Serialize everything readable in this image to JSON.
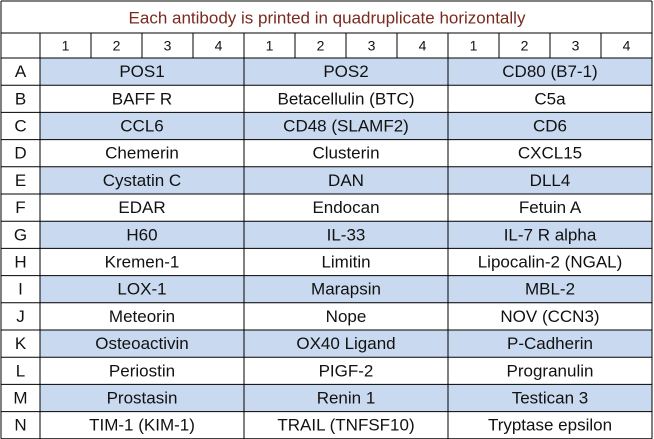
{
  "title": "Each antibody is printed in quadruplicate horizontally",
  "header": [
    "1",
    "2",
    "3",
    "4",
    "1",
    "2",
    "3",
    "4",
    "1",
    "2",
    "3",
    "4"
  ],
  "rows": [
    {
      "label": "A",
      "cells": [
        "POS1",
        "POS2",
        "CD80 (B7-1)"
      ]
    },
    {
      "label": "B",
      "cells": [
        "BAFF R",
        "Betacellulin (BTC)",
        "C5a"
      ]
    },
    {
      "label": "C",
      "cells": [
        "CCL6",
        "CD48 (SLAMF2)",
        "CD6"
      ]
    },
    {
      "label": "D",
      "cells": [
        "Chemerin",
        "Clusterin",
        "CXCL15"
      ]
    },
    {
      "label": "E",
      "cells": [
        "Cystatin C",
        "DAN",
        "DLL4"
      ]
    },
    {
      "label": "F",
      "cells": [
        "EDAR",
        "Endocan",
        "Fetuin A"
      ]
    },
    {
      "label": "G",
      "cells": [
        "H60",
        "IL-33",
        "IL-7 R alpha"
      ]
    },
    {
      "label": "H",
      "cells": [
        "Kremen-1",
        "Limitin",
        "Lipocalin-2 (NGAL)"
      ]
    },
    {
      "label": "I",
      "cells": [
        "LOX-1",
        "Marapsin",
        "MBL-2"
      ]
    },
    {
      "label": "J",
      "cells": [
        "Meteorin",
        "Nope",
        "NOV (CCN3)"
      ]
    },
    {
      "label": "K",
      "cells": [
        "Osteoactivin",
        "OX40 Ligand",
        "P-Cadherin"
      ]
    },
    {
      "label": "L",
      "cells": [
        "Periostin",
        "PIGF-2",
        "Progranulin"
      ]
    },
    {
      "label": "M",
      "cells": [
        "Prostasin",
        "Renin 1",
        "Testican 3"
      ]
    },
    {
      "label": "N",
      "cells": [
        "TIM-1 (KIM-1)",
        "TRAIL (TNFSF10)",
        "Tryptase epsilon"
      ]
    }
  ]
}
